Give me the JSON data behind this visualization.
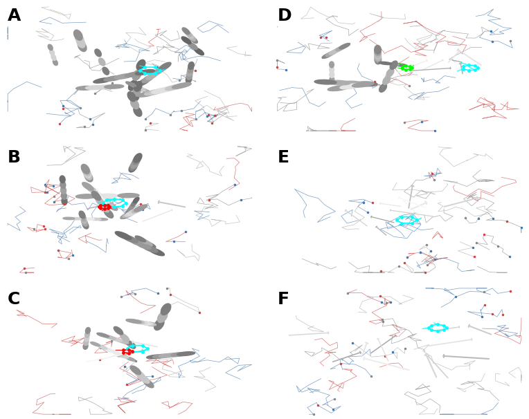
{
  "panels": [
    {
      "label": "A",
      "row": 0,
      "col": 0
    },
    {
      "label": "B",
      "row": 1,
      "col": 0
    },
    {
      "label": "C",
      "row": 2,
      "col": 0
    },
    {
      "label": "D",
      "row": 0,
      "col": 1
    },
    {
      "label": "E",
      "row": 1,
      "col": 1
    },
    {
      "label": "F",
      "row": 2,
      "col": 1
    }
  ],
  "background_color": "#000000",
  "label_color": "#000000",
  "label_bg_color": "#ffffff",
  "label_fontsize": 18,
  "label_fontweight": "bold",
  "fig_width": 7.64,
  "fig_height": 6.06,
  "nrows": 3,
  "ncols": 2,
  "hspace": 0.08,
  "wspace": 0.06,
  "fig_bg_color": "#ffffff",
  "loop_colors": [
    "#4477aa",
    "#cc4444",
    "#888888",
    "#aaaaaa"
  ],
  "dot_colors": [
    "#4477aa",
    "#cc4444",
    "#888888"
  ]
}
